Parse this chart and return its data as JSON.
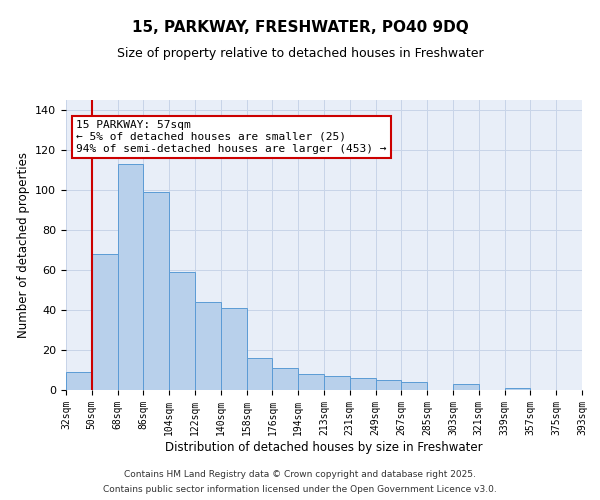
{
  "title": "15, PARKWAY, FRESHWATER, PO40 9DQ",
  "subtitle": "Size of property relative to detached houses in Freshwater",
  "xlabel": "Distribution of detached houses by size in Freshwater",
  "ylabel": "Number of detached properties",
  "bar_values": [
    9,
    68,
    113,
    99,
    59,
    44,
    41,
    16,
    11,
    8,
    7,
    6,
    5,
    4,
    0,
    3,
    0,
    1,
    0,
    0
  ],
  "bin_labels": [
    "32sqm",
    "50sqm",
    "68sqm",
    "86sqm",
    "104sqm",
    "122sqm",
    "140sqm",
    "158sqm",
    "176sqm",
    "194sqm",
    "213sqm",
    "231sqm",
    "249sqm",
    "267sqm",
    "285sqm",
    "303sqm",
    "321sqm",
    "339sqm",
    "357sqm",
    "375sqm",
    "393sqm"
  ],
  "bar_color": "#b8d0eb",
  "bar_edge_color": "#5b9bd5",
  "bar_width": 1.0,
  "vline_x_idx": 1,
  "vline_color": "#cc0000",
  "annotation_title": "15 PARKWAY: 57sqm",
  "annotation_line1": "← 5% of detached houses are smaller (25)",
  "annotation_line2": "94% of semi-detached houses are larger (453) →",
  "annotation_box_color": "#ffffff",
  "annotation_box_edge": "#cc0000",
  "ylim": [
    0,
    145
  ],
  "yticks": [
    0,
    20,
    40,
    60,
    80,
    100,
    120,
    140
  ],
  "footer1": "Contains HM Land Registry data © Crown copyright and database right 2025.",
  "footer2": "Contains public sector information licensed under the Open Government Licence v3.0.",
  "background_color": "#ffffff",
  "plot_bg_color": "#e8eef8",
  "grid_color": "#c8d4e8",
  "title_fontsize": 11,
  "subtitle_fontsize": 9,
  "axis_label_fontsize": 8,
  "tick_fontsize": 7,
  "footer_fontsize": 6.5,
  "annotation_fontsize": 8
}
